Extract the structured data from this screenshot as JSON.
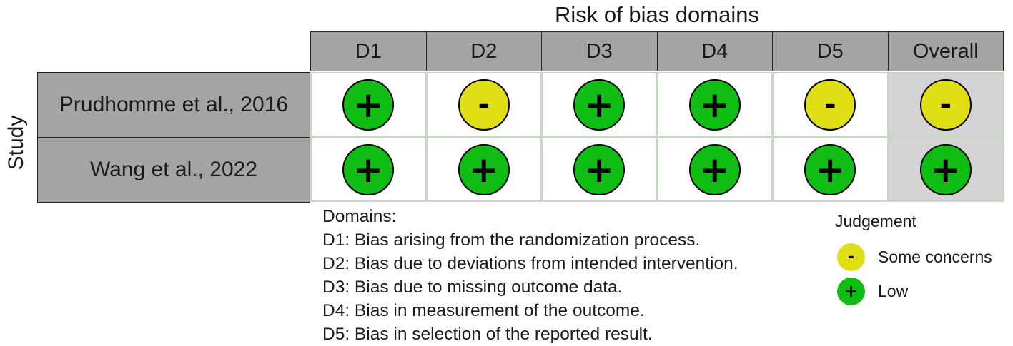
{
  "title": "Risk of bias domains",
  "y_axis_label": "Study",
  "columns": [
    "D1",
    "D2",
    "D3",
    "D4",
    "D5",
    "Overall"
  ],
  "studies": [
    {
      "name": "Prudhomme et al., 2016",
      "judgements": [
        "low",
        "some",
        "low",
        "low",
        "some",
        "some"
      ]
    },
    {
      "name": "Wang et al., 2022",
      "judgements": [
        "low",
        "low",
        "low",
        "low",
        "low",
        "low"
      ]
    }
  ],
  "symbols": {
    "low": "+",
    "some": "-"
  },
  "colors": {
    "low": "#0fbd14",
    "some": "#e0de15",
    "header": "#a4a4a4",
    "overall_bg": "#d4d4d4"
  },
  "domains": {
    "heading": "Domains:",
    "items": [
      "D1: Bias arising from the randomization process.",
      "D2: Bias due to deviations from intended intervention.",
      "D3: Bias due to missing outcome data.",
      "D4: Bias in measurement of the outcome.",
      "D5: Bias in selection of the reported result."
    ]
  },
  "legend": {
    "title": "Judgement",
    "items": [
      {
        "symbol": "-",
        "label": "Some concerns",
        "level": "some"
      },
      {
        "symbol": "+",
        "label": "Low",
        "level": "low"
      }
    ]
  }
}
